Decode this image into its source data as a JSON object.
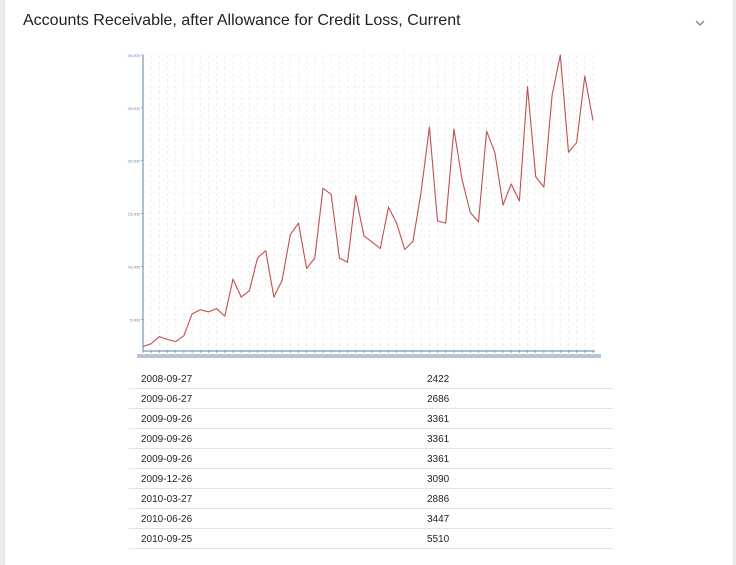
{
  "card": {
    "title": "Accounts Receivable, after Allowance for Credit Loss, Current",
    "toggle_icon": "chevron-down-icon"
  },
  "chart_data": {
    "type": "line",
    "title": "",
    "xlabel": "",
    "ylabel": "",
    "grid": true,
    "legend": "none",
    "line_color": "#c0504d",
    "axis_color": "#5b7fa8",
    "ylim": [
      2000,
      30000
    ],
    "yticks": [
      "5,000",
      "10,000",
      "15,000",
      "20,000",
      "25,000",
      "30,000"
    ],
    "series": [
      {
        "values": [
          2422,
          2686,
          3361,
          3090,
          2886,
          3447,
          5510,
          5900,
          5700,
          6000,
          5300,
          8800,
          7100,
          7700,
          10800,
          11500,
          7100,
          8700,
          13000,
          14100,
          9800,
          10800,
          17400,
          16800,
          10800,
          10400,
          16700,
          12900,
          12300,
          11700,
          15600,
          14100,
          11600,
          12400,
          17100,
          23200,
          14300,
          14100,
          23000,
          18200,
          15100,
          14200,
          22800,
          20800,
          15800,
          17800,
          16200,
          27000,
          18500,
          17500,
          26200,
          30000,
          20800,
          21700,
          28000,
          23800
        ]
      }
    ]
  },
  "table": {
    "rows": [
      {
        "date": "2008-09-27",
        "value": "2422"
      },
      {
        "date": "2009-06-27",
        "value": "2686"
      },
      {
        "date": "2009-09-26",
        "value": "3361"
      },
      {
        "date": "2009-09-26",
        "value": "3361"
      },
      {
        "date": "2009-09-26",
        "value": "3361"
      },
      {
        "date": "2009-12-26",
        "value": "3090"
      },
      {
        "date": "2010-03-27",
        "value": "2886"
      },
      {
        "date": "2010-06-26",
        "value": "3447"
      },
      {
        "date": "2010-09-25",
        "value": "5510"
      }
    ]
  }
}
